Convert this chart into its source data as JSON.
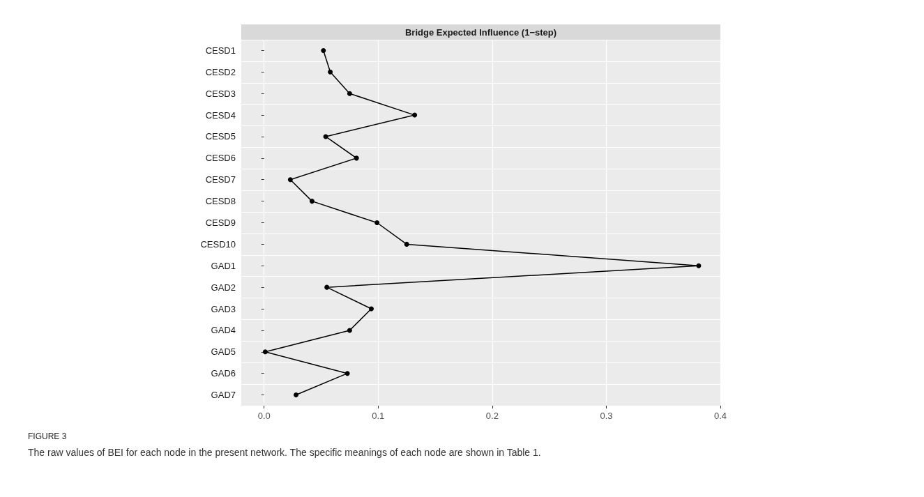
{
  "chart_data": {
    "type": "line",
    "title": "Bridge Expected Influence (1−step)",
    "categories": [
      "CESD1",
      "CESD2",
      "CESD3",
      "CESD4",
      "CESD5",
      "CESD6",
      "CESD7",
      "CESD8",
      "CESD9",
      "CESD10",
      "GAD1",
      "GAD2",
      "GAD3",
      "GAD4",
      "GAD5",
      "GAD6",
      "GAD7"
    ],
    "orientation": "horizontal",
    "series": [
      {
        "color": "#000000",
        "values": [
          0.052,
          0.058,
          0.075,
          0.132,
          0.054,
          0.081,
          0.023,
          0.042,
          0.099,
          0.125,
          0.381,
          0.055,
          0.094,
          0.075,
          0.001,
          0.073,
          0.028
        ]
      }
    ],
    "xlim": [
      -0.02,
      0.4
    ],
    "xticks": [
      {
        "value": 0,
        "label": "0.0"
      },
      0.1,
      0.2,
      0.3,
      0.4
    ],
    "grid": true,
    "marker": "circle",
    "line_style": "solid",
    "annotations": [
      "FIGURE 3",
      "The raw values of BEI for each node in the present network. The specific meanings of each node are shown in Table 1."
    ]
  }
}
